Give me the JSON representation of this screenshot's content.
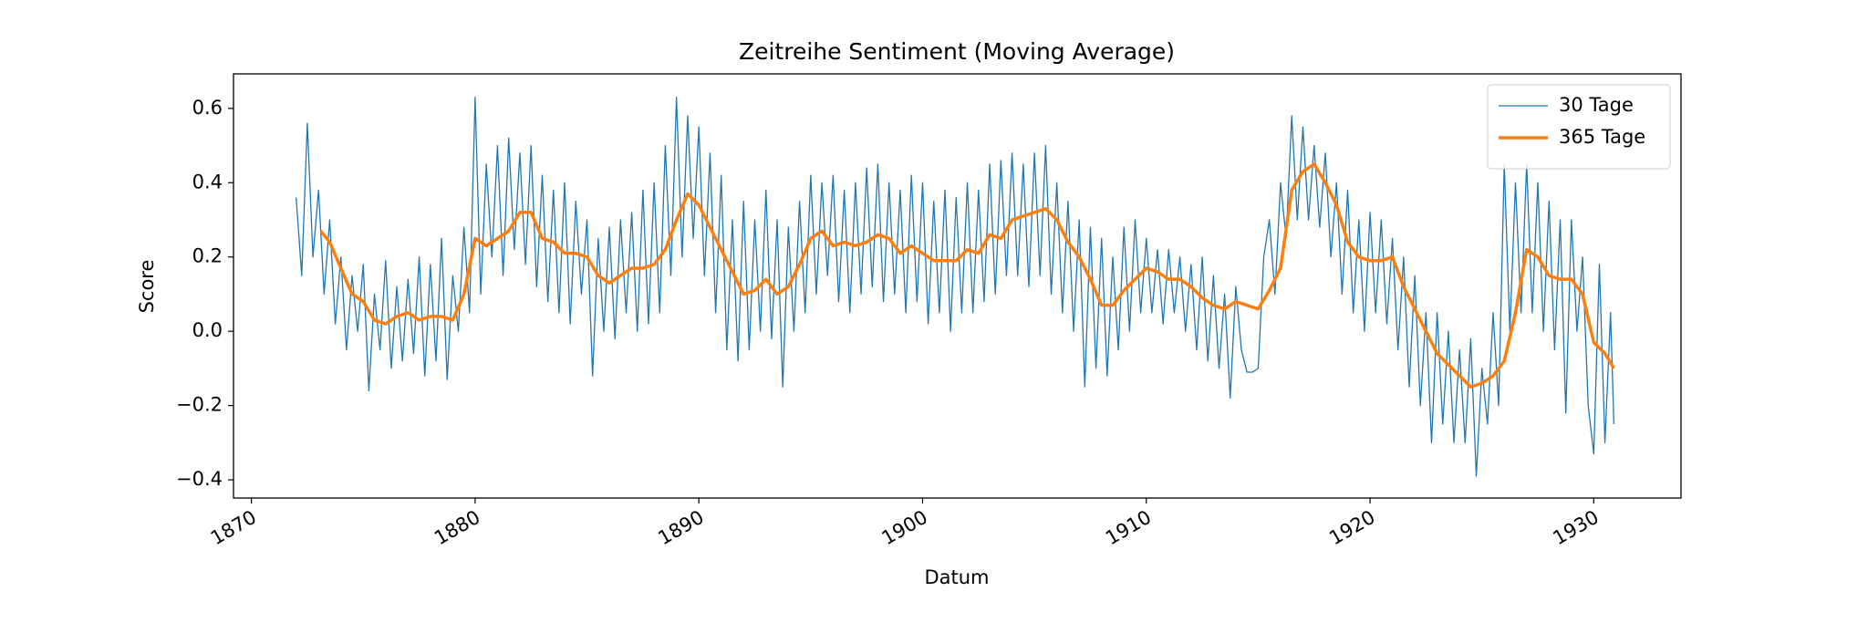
{
  "chart_data": {
    "type": "line",
    "title": "Zeitreihe Sentiment (Moving Average)",
    "x_label": "Datum",
    "y_label": "Score",
    "xlim": [
      1869.2,
      1933.9
    ],
    "ylim": [
      -0.449,
      0.693
    ],
    "xticks": [
      1870,
      1880,
      1890,
      1900,
      1910,
      1920,
      1930
    ],
    "yticks": [
      {
        "value": -0.4,
        "label": "−0.4"
      },
      {
        "value": -0.2,
        "label": "−0.2"
      },
      {
        "value": 0,
        "label": "0.0"
      },
      0.2,
      0.4,
      0.6
    ],
    "legend": "upper right",
    "series": [
      {
        "name": "30 Tage",
        "color": "#1f77b4",
        "linewidth": 1.3,
        "x": [
          1872,
          1872.25,
          1872.5,
          1872.75,
          1873,
          1873.25,
          1873.5,
          1873.75,
          1874,
          1874.25,
          1874.5,
          1874.75,
          1875,
          1875.25,
          1875.5,
          1875.75,
          1876,
          1876.25,
          1876.5,
          1876.75,
          1877,
          1877.25,
          1877.5,
          1877.75,
          1878,
          1878.25,
          1878.5,
          1878.75,
          1879,
          1879.25,
          1879.5,
          1879.75,
          1880,
          1880.25,
          1880.5,
          1880.75,
          1881,
          1881.25,
          1881.5,
          1881.75,
          1882,
          1882.25,
          1882.5,
          1882.75,
          1883,
          1883.25,
          1883.5,
          1883.75,
          1884,
          1884.25,
          1884.5,
          1884.75,
          1885,
          1885.25,
          1885.5,
          1885.75,
          1886,
          1886.25,
          1886.5,
          1886.75,
          1887,
          1887.25,
          1887.5,
          1887.75,
          1888,
          1888.25,
          1888.5,
          1888.75,
          1889,
          1889.25,
          1889.5,
          1889.75,
          1890,
          1890.25,
          1890.5,
          1890.75,
          1891,
          1891.25,
          1891.5,
          1891.75,
          1892,
          1892.25,
          1892.5,
          1892.75,
          1893,
          1893.25,
          1893.5,
          1893.75,
          1894,
          1894.25,
          1894.5,
          1894.75,
          1895,
          1895.25,
          1895.5,
          1895.75,
          1896,
          1896.25,
          1896.5,
          1896.75,
          1897,
          1897.25,
          1897.5,
          1897.75,
          1898,
          1898.25,
          1898.5,
          1898.75,
          1899,
          1899.25,
          1899.5,
          1899.75,
          1900,
          1900.25,
          1900.5,
          1900.75,
          1901,
          1901.25,
          1901.5,
          1901.75,
          1902,
          1902.25,
          1902.5,
          1902.75,
          1903,
          1903.25,
          1903.5,
          1903.75,
          1904,
          1904.25,
          1904.5,
          1904.75,
          1905,
          1905.25,
          1905.5,
          1905.75,
          1906,
          1906.25,
          1906.5,
          1906.75,
          1907,
          1907.25,
          1907.5,
          1907.75,
          1908,
          1908.25,
          1908.5,
          1908.75,
          1909,
          1909.25,
          1909.5,
          1909.75,
          1910,
          1910.25,
          1910.5,
          1910.75,
          1911,
          1911.25,
          1911.5,
          1911.75,
          1912,
          1912.25,
          1912.5,
          1912.75,
          1913,
          1913.25,
          1913.5,
          1913.75,
          1914,
          1914.25,
          1914.5,
          1914.75,
          1915,
          1915.25,
          1915.5,
          1915.75,
          1916,
          1916.25,
          1916.5,
          1916.75,
          1917,
          1917.25,
          1917.5,
          1917.75,
          1918,
          1918.25,
          1918.5,
          1918.75,
          1919,
          1919.25,
          1919.5,
          1919.75,
          1920,
          1920.25,
          1920.5,
          1920.75,
          1921,
          1921.25,
          1921.5,
          1921.75,
          1922,
          1922.25,
          1922.5,
          1922.75,
          1923,
          1923.25,
          1923.5,
          1923.75,
          1924,
          1924.25,
          1924.5,
          1924.75,
          1925,
          1925.25,
          1925.5,
          1925.75,
          1926,
          1926.25,
          1926.5,
          1926.75,
          1927,
          1927.25,
          1927.5,
          1927.75,
          1928,
          1928.25,
          1928.5,
          1928.75,
          1929,
          1929.25,
          1929.5,
          1929.75,
          1930,
          1930.25,
          1930.5,
          1930.75,
          1930.9
        ],
        "values": [
          0.36,
          0.15,
          0.56,
          0.2,
          0.38,
          0.1,
          0.3,
          0.02,
          0.2,
          -0.05,
          0.15,
          0,
          0.18,
          -0.16,
          0.1,
          -0.05,
          0.19,
          -0.1,
          0.12,
          -0.08,
          0.14,
          -0.06,
          0.2,
          -0.12,
          0.18,
          -0.08,
          0.25,
          -0.13,
          0.15,
          0,
          0.28,
          0.05,
          0.63,
          0.1,
          0.45,
          0.2,
          0.5,
          0.15,
          0.52,
          0.22,
          0.48,
          0.18,
          0.5,
          0.12,
          0.42,
          0.08,
          0.38,
          0.05,
          0.4,
          0.02,
          0.35,
          0.1,
          0.3,
          -0.12,
          0.25,
          0,
          0.28,
          -0.02,
          0.3,
          0.05,
          0.32,
          0,
          0.38,
          0.02,
          0.4,
          0.05,
          0.5,
          0.15,
          0.63,
          0.2,
          0.58,
          0.25,
          0.55,
          0.15,
          0.48,
          0.05,
          0.42,
          -0.05,
          0.3,
          -0.08,
          0.35,
          -0.05,
          0.3,
          0,
          0.38,
          -0.02,
          0.3,
          -0.15,
          0.28,
          0,
          0.35,
          0.05,
          0.42,
          0.1,
          0.4,
          0.15,
          0.42,
          0.08,
          0.38,
          0.05,
          0.4,
          0.1,
          0.44,
          0.12,
          0.45,
          0.08,
          0.4,
          0.1,
          0.38,
          0.05,
          0.42,
          0.08,
          0.4,
          0.02,
          0.35,
          0.05,
          0.38,
          0,
          0.36,
          0.05,
          0.4,
          0.05,
          0.38,
          0.08,
          0.45,
          0.1,
          0.46,
          0.15,
          0.48,
          0.15,
          0.45,
          0.12,
          0.48,
          0.15,
          0.5,
          0.1,
          0.4,
          0.05,
          0.35,
          0,
          0.3,
          -0.15,
          0.28,
          -0.1,
          0.25,
          -0.12,
          0.2,
          -0.05,
          0.28,
          0,
          0.3,
          0.05,
          0.25,
          0.05,
          0.22,
          0.02,
          0.22,
          0.05,
          0.2,
          0,
          0.18,
          -0.05,
          0.2,
          -0.08,
          0.15,
          -0.1,
          0.1,
          -0.18,
          0.12,
          -0.05,
          -0.11,
          -0.11,
          -0.1,
          0.2,
          0.3,
          0.1,
          0.4,
          0.25,
          0.58,
          0.3,
          0.55,
          0.3,
          0.5,
          0.28,
          0.48,
          0.2,
          0.4,
          0.1,
          0.38,
          0.05,
          0.3,
          0,
          0.32,
          0.05,
          0.3,
          0.02,
          0.25,
          -0.05,
          0.2,
          -0.15,
          0.15,
          -0.2,
          0.05,
          -0.3,
          0.05,
          -0.25,
          0,
          -0.3,
          -0.05,
          -0.3,
          -0.02,
          -0.39,
          -0.1,
          -0.25,
          0.05,
          -0.2,
          0.45,
          0,
          0.4,
          0.05,
          0.45,
          0.05,
          0.4,
          0,
          0.35,
          -0.05,
          0.3,
          -0.22,
          0.3,
          0,
          0.2,
          -0.2,
          -0.33,
          0.18,
          -0.3,
          0.05,
          -0.25
        ]
      },
      {
        "name": "365 Tage",
        "color": "#ff7f0e",
        "linewidth": 3.5,
        "x": [
          1873.1,
          1873.5,
          1874,
          1874.5,
          1875,
          1875.5,
          1876,
          1876.5,
          1877,
          1877.5,
          1878,
          1878.5,
          1879,
          1879.5,
          1880,
          1880.5,
          1881,
          1881.5,
          1882,
          1882.5,
          1883,
          1883.5,
          1884,
          1884.5,
          1885,
          1885.5,
          1886,
          1886.5,
          1887,
          1887.5,
          1888,
          1888.5,
          1889,
          1889.5,
          1890,
          1890.5,
          1891,
          1891.5,
          1892,
          1892.5,
          1893,
          1893.5,
          1894,
          1894.5,
          1895,
          1895.5,
          1896,
          1896.5,
          1897,
          1897.5,
          1898,
          1898.5,
          1899,
          1899.5,
          1900,
          1900.5,
          1901,
          1901.5,
          1902,
          1902.5,
          1903,
          1903.5,
          1904,
          1904.5,
          1905,
          1905.5,
          1906,
          1906.5,
          1907,
          1907.5,
          1908,
          1908.5,
          1909,
          1909.5,
          1910,
          1910.5,
          1911,
          1911.5,
          1912,
          1912.5,
          1913,
          1913.5,
          1914,
          1914.5,
          1915,
          1915.5,
          1916,
          1916.5,
          1917,
          1917.5,
          1918,
          1918.5,
          1919,
          1919.5,
          1920,
          1920.5,
          1921,
          1921.5,
          1922,
          1922.5,
          1923,
          1923.5,
          1924,
          1924.5,
          1925,
          1925.5,
          1926,
          1926.5,
          1927,
          1927.5,
          1928,
          1928.5,
          1929,
          1929.5,
          1930,
          1930.5,
          1930.9
        ],
        "values": [
          0.27,
          0.24,
          0.17,
          0.1,
          0.08,
          0.03,
          0.02,
          0.04,
          0.05,
          0.03,
          0.04,
          0.04,
          0.03,
          0.1,
          0.25,
          0.23,
          0.25,
          0.27,
          0.32,
          0.32,
          0.25,
          0.24,
          0.21,
          0.21,
          0.2,
          0.15,
          0.13,
          0.15,
          0.17,
          0.17,
          0.18,
          0.22,
          0.3,
          0.37,
          0.34,
          0.28,
          0.22,
          0.16,
          0.1,
          0.11,
          0.14,
          0.1,
          0.12,
          0.18,
          0.25,
          0.27,
          0.23,
          0.24,
          0.23,
          0.24,
          0.26,
          0.25,
          0.21,
          0.23,
          0.21,
          0.19,
          0.19,
          0.19,
          0.22,
          0.21,
          0.26,
          0.25,
          0.3,
          0.31,
          0.32,
          0.33,
          0.3,
          0.24,
          0.2,
          0.14,
          0.07,
          0.07,
          0.11,
          0.14,
          0.17,
          0.16,
          0.14,
          0.14,
          0.12,
          0.09,
          0.07,
          0.06,
          0.08,
          0.07,
          0.06,
          0.11,
          0.17,
          0.38,
          0.43,
          0.45,
          0.4,
          0.34,
          0.24,
          0.2,
          0.19,
          0.19,
          0.2,
          0.12,
          0.06,
          0,
          -0.06,
          -0.09,
          -0.12,
          -0.15,
          -0.14,
          -0.12,
          -0.08,
          0.05,
          0.22,
          0.2,
          0.15,
          0.14,
          0.14,
          0.1,
          -0.03,
          -0.06,
          -0.1
        ]
      }
    ]
  }
}
